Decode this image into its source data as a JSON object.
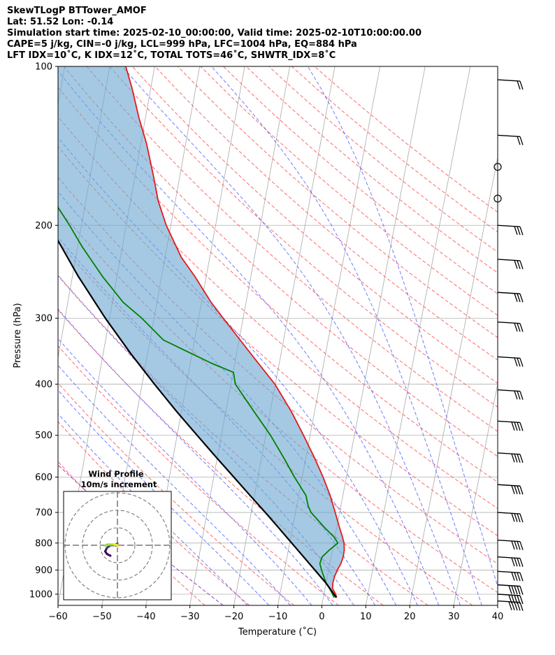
{
  "header": {
    "line1": "SkewTLogP BTTower_AMOF",
    "line2": "Lat: 51.52   Lon: -0.14",
    "line3": "Simulation start time: 2025-02-10_00:00:00, Valid time: 2025-02-10T10:00:00.00",
    "line4": "CAPE=5 j/kg, CIN=-0 j/kg, LCL=999 hPa, LFC=1004 hPa, EQ=884 hPa",
    "line5": "LFT IDX=10˚C, K IDX=12˚C, TOTAL TOTS=46˚C, SHWTR_IDX=8˚C"
  },
  "chart_data": {
    "type": "line",
    "xlabel": "Temperature (˚C)",
    "ylabel": "Pressure (hPa)",
    "xlim": [
      -60,
      40
    ],
    "ylim": [
      1050,
      100
    ],
    "y_scale": "log",
    "skew": true,
    "grid": true,
    "x_ticks": [
      -60,
      -50,
      -40,
      -30,
      -20,
      -10,
      0,
      10,
      20,
      30,
      40
    ],
    "y_ticks": [
      100,
      200,
      300,
      400,
      500,
      600,
      700,
      800,
      900,
      1000
    ],
    "series": [
      {
        "color": "#e41a1c",
        "points": [
          [
            1015,
            3.0
          ],
          [
            1000,
            2.6
          ],
          [
            975,
            1.6
          ],
          [
            950,
            1.4
          ],
          [
            925,
            1.5
          ],
          [
            900,
            1.8
          ],
          [
            875,
            2.3
          ],
          [
            850,
            2.5
          ],
          [
            825,
            2.4
          ],
          [
            800,
            2.0
          ],
          [
            775,
            1.2
          ],
          [
            750,
            0.3
          ],
          [
            700,
            -1.5
          ],
          [
            650,
            -3.5
          ],
          [
            600,
            -6.0
          ],
          [
            550,
            -9.0
          ],
          [
            500,
            -12.5
          ],
          [
            450,
            -16.5
          ],
          [
            400,
            -21.5
          ],
          [
            350,
            -28.5
          ],
          [
            300,
            -36.5
          ],
          [
            280,
            -40.0
          ],
          [
            250,
            -45.0
          ],
          [
            230,
            -49.0
          ],
          [
            200,
            -54.0
          ],
          [
            180,
            -57.0
          ],
          [
            160,
            -59.5
          ],
          [
            140,
            -62.5
          ],
          [
            125,
            -65.5
          ],
          [
            110,
            -68.5
          ],
          [
            100,
            -71.0
          ]
        ]
      },
      {
        "color": "#008000",
        "points": [
          [
            1015,
            2.4
          ],
          [
            1000,
            1.9
          ],
          [
            975,
            0.9
          ],
          [
            950,
            -0.2
          ],
          [
            925,
            -1.0
          ],
          [
            900,
            -1.8
          ],
          [
            875,
            -2.5
          ],
          [
            850,
            -2.3
          ],
          [
            825,
            -1.0
          ],
          [
            800,
            0.6
          ],
          [
            780,
            -0.5
          ],
          [
            750,
            -3.0
          ],
          [
            700,
            -7.0
          ],
          [
            680,
            -8.0
          ],
          [
            650,
            -9.0
          ],
          [
            600,
            -12.5
          ],
          [
            550,
            -16.0
          ],
          [
            500,
            -20.0
          ],
          [
            450,
            -25.0
          ],
          [
            400,
            -30.5
          ],
          [
            380,
            -31.5
          ],
          [
            365,
            -37.0
          ],
          [
            330,
            -49.0
          ],
          [
            300,
            -55.0
          ],
          [
            280,
            -60.0
          ],
          [
            250,
            -66.0
          ],
          [
            220,
            -72.0
          ],
          [
            200,
            -76.0
          ],
          [
            185,
            -79.5
          ],
          [
            170,
            -81.0
          ],
          [
            150,
            -83.0
          ],
          [
            130,
            -85.0
          ],
          [
            115,
            -87.5
          ],
          [
            100,
            -90.0
          ]
        ]
      },
      {
        "color": "#000000",
        "points": [
          [
            1015,
            2.9
          ],
          [
            1000,
            2.2
          ],
          [
            975,
            1.0
          ],
          [
            950,
            -0.3
          ],
          [
            925,
            -1.8
          ],
          [
            900,
            -3.3
          ],
          [
            875,
            -4.9
          ],
          [
            850,
            -6.5
          ],
          [
            800,
            -9.9
          ],
          [
            750,
            -13.5
          ],
          [
            700,
            -17.4
          ],
          [
            650,
            -21.7
          ],
          [
            600,
            -26.3
          ],
          [
            550,
            -31.3
          ],
          [
            500,
            -36.7
          ],
          [
            450,
            -42.6
          ],
          [
            400,
            -48.9
          ],
          [
            350,
            -55.8
          ],
          [
            300,
            -63.3
          ],
          [
            250,
            -71.5
          ],
          [
            200,
            -80.6
          ],
          [
            150,
            -91.0
          ],
          [
            100,
            -103.5
          ]
        ]
      }
    ],
    "cape_fill": true,
    "wind_barbs": {
      "side": "right",
      "units": "kt"
    },
    "inset": {
      "title": "Wind Profile",
      "subtitle": "10m/s increment",
      "type": "hodograph",
      "rings_ms": [
        10,
        20,
        30
      ],
      "trace": [
        [
          -4,
          -6
        ],
        [
          -6,
          -5
        ],
        [
          -7,
          -3.5
        ],
        [
          -6,
          -1.5
        ],
        [
          -4,
          0
        ],
        [
          -2,
          0
        ],
        [
          0,
          1
        ],
        [
          0,
          0
        ],
        [
          0,
          -0.5
        ],
        [
          -1.5,
          0
        ],
        [
          -3,
          0.3
        ],
        [
          -5,
          0.4
        ],
        [
          -6,
          0.3
        ],
        [
          -7,
          -0.2
        ],
        [
          -5,
          0.3
        ],
        [
          -2,
          0.5
        ],
        [
          0,
          0
        ],
        [
          0,
          -1
        ]
      ]
    }
  }
}
